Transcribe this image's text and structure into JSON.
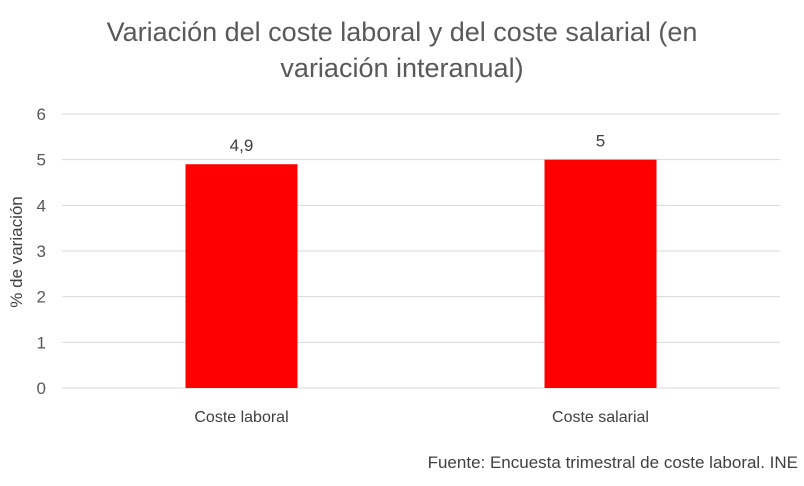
{
  "chart_data": {
    "type": "bar",
    "title_lines": [
      "Variación del coste laboral y del coste salarial (en",
      "variación interanual)"
    ],
    "categories": [
      "Coste laboral",
      "Coste salarial"
    ],
    "values": [
      4.9,
      5
    ],
    "data_labels": [
      "4,9",
      "5"
    ],
    "ylabel": "% de variación",
    "xlabel": "",
    "ylim": [
      0,
      6
    ],
    "yticks": [
      "0",
      "1",
      "2",
      "3",
      "4",
      "5",
      "6"
    ],
    "grid": true,
    "legend": "none",
    "bar_color": "#ff0000",
    "source": "Fuente: Encuesta trimestral de coste laboral. INE"
  }
}
